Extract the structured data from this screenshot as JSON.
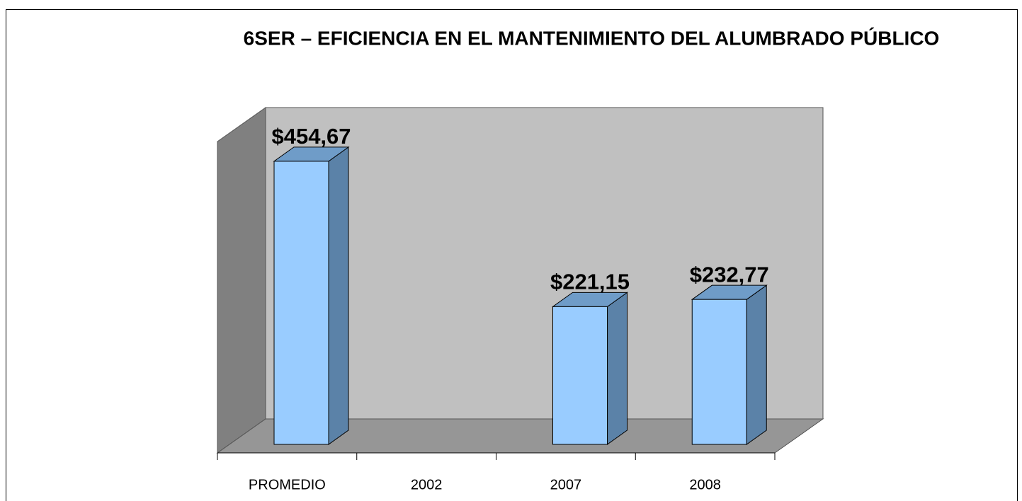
{
  "chart_data": {
    "type": "bar3d",
    "title": "6SER – EFICIENCIA EN EL MANTENIMIENTO DEL ALUMBRADO PÚBLICO",
    "categories": [
      "PROMEDIO",
      "2002",
      "2007",
      "2008"
    ],
    "values": [
      454.67,
      null,
      221.15,
      232.77
    ],
    "value_labels": [
      "$454,67",
      null,
      "$221,15",
      "$232,77"
    ],
    "ylim": [
      0,
      500
    ],
    "colors": {
      "front": "#99ccff",
      "side": "#5b82a8",
      "top": "#6f9cc8",
      "back_wall": "#c0c0c0",
      "side_wall": "#808080",
      "floor": "#969696"
    }
  }
}
